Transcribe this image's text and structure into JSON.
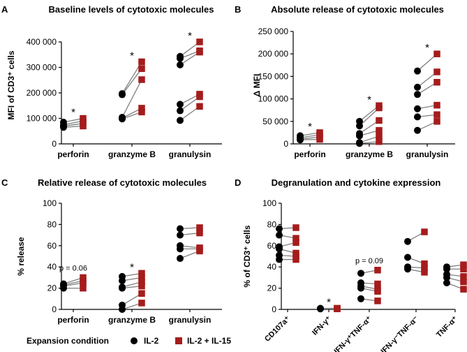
{
  "colors": {
    "il2": "#000000",
    "il215": "#a51c1c",
    "line": "#808080"
  },
  "legend": {
    "title": "Expansion condition",
    "il2": "IL-2",
    "il215": "IL-2 + IL-15"
  },
  "chart_data": [
    {
      "type": "scatter",
      "panel": "A",
      "title": "Baseline levels of cytotoxic molecules",
      "ylabel": "MFI of CD3⁺ cells",
      "ylim": [
        0,
        400000
      ],
      "yticks": [
        0,
        100000,
        200000,
        300000,
        400000
      ],
      "ytick_labels": [
        "0",
        "100 000",
        "200 000",
        "300 000",
        "400 000"
      ],
      "categories": [
        "perforin",
        "granzyme B",
        "granulysin"
      ],
      "significance": [
        "*",
        "*",
        "*"
      ],
      "pairs": [
        [
          [
            85000,
            100000
          ],
          [
            75000,
            90000
          ],
          [
            70000,
            80000
          ],
          [
            65000,
            70000
          ]
        ],
        [
          [
            197000,
            322000
          ],
          [
            193000,
            295000
          ],
          [
            104000,
            252000
          ],
          [
            101000,
            140000
          ],
          [
            98000,
            125000
          ]
        ],
        [
          [
            343000,
            400000
          ],
          [
            335000,
            365000
          ],
          [
            310000,
            360000
          ],
          [
            155000,
            195000
          ],
          [
            130000,
            185000
          ],
          [
            92000,
            147000
          ]
        ]
      ]
    },
    {
      "type": "scatter",
      "panel": "B",
      "title": "Absolute release of cytotoxic molecules",
      "ylabel": "Δ MFI",
      "ylim": [
        0,
        250000
      ],
      "yticks": [
        0,
        50000,
        100000,
        150000,
        200000,
        250000
      ],
      "ytick_labels": [
        "0",
        "50 000",
        "100 000",
        "150 000",
        "200 000",
        "250 000"
      ],
      "categories": [
        "perforin",
        "granzyme B",
        "granulysin"
      ],
      "significance": [
        "*",
        "*",
        "*"
      ],
      "pairs": [
        [
          [
            18000,
            25000
          ],
          [
            14000,
            20000
          ],
          [
            11000,
            15000
          ],
          [
            9000,
            10000
          ]
        ],
        [
          [
            50000,
            85000
          ],
          [
            40000,
            80000
          ],
          [
            23000,
            52000
          ],
          [
            18000,
            30000
          ],
          [
            3000,
            17000
          ],
          [
            1000,
            5000
          ]
        ],
        [
          [
            162000,
            200000
          ],
          [
            126000,
            160000
          ],
          [
            110000,
            137000
          ],
          [
            78000,
            86000
          ],
          [
            60000,
            65000
          ],
          [
            30000,
            50000
          ]
        ]
      ]
    },
    {
      "type": "scatter",
      "panel": "C",
      "title": "Relative release of cytotoxic molecules",
      "ylabel": "% release",
      "ylim": [
        0,
        100
      ],
      "yticks": [
        0,
        20,
        40,
        60,
        80,
        100
      ],
      "ytick_labels": [
        "0",
        "20",
        "40",
        "60",
        "80",
        "100"
      ],
      "categories": [
        "perforin",
        "granzyme B",
        "granulysin"
      ],
      "significance": [
        "p = 0.06",
        "*",
        ""
      ],
      "pairs": [
        [
          [
            24,
            30
          ],
          [
            23,
            27
          ],
          [
            22,
            25
          ],
          [
            20,
            20
          ]
        ],
        [
          [
            31,
            34
          ],
          [
            27,
            30
          ],
          [
            21,
            26
          ],
          [
            20,
            22
          ],
          [
            4,
            15
          ],
          [
            0,
            6
          ]
        ],
        [
          [
            76,
            77
          ],
          [
            70,
            72
          ],
          [
            60,
            58
          ],
          [
            57,
            57
          ],
          [
            48,
            55
          ]
        ]
      ]
    },
    {
      "type": "scatter",
      "panel": "D",
      "title": "Degranulation and cytokine expression",
      "ylabel": "% of CD3⁺ cells",
      "ylim": [
        0,
        100
      ],
      "yticks": [
        0,
        20,
        40,
        60,
        80,
        100
      ],
      "ytick_labels": [
        "0",
        "20",
        "40",
        "60",
        "80",
        "100"
      ],
      "categories": [
        "CD107a⁺",
        "IFN-γ⁺",
        "IFN-γ⁺TNF-α⁺",
        "IFN-γ⁻TNF-α⁻",
        "TNF-α⁺"
      ],
      "significance": [
        "",
        "*",
        "p = 0.09",
        "",
        ""
      ],
      "pairs": [
        [
          [
            76,
            77
          ],
          [
            70,
            67
          ],
          [
            59,
            63
          ],
          [
            57,
            53
          ],
          [
            51,
            50
          ],
          [
            47,
            47
          ]
        ],
        [
          [
            1,
            1
          ],
          [
            0.8,
            1
          ],
          [
            0.5,
            0.5
          ]
        ],
        [
          [
            34,
            37
          ],
          [
            25,
            24
          ],
          [
            22,
            19
          ],
          [
            20,
            17
          ],
          [
            10,
            8
          ]
        ],
        [
          [
            64,
            73
          ],
          [
            49,
            43
          ],
          [
            40,
            39
          ],
          [
            38,
            35
          ]
        ],
        [
          [
            40,
            42
          ],
          [
            38,
            38
          ],
          [
            33,
            31
          ],
          [
            30,
            26
          ],
          [
            25,
            19
          ]
        ]
      ]
    }
  ]
}
